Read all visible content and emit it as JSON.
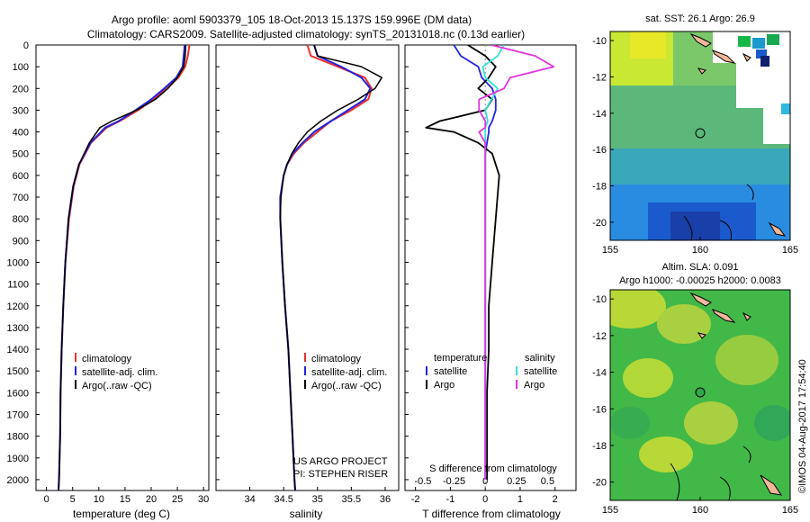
{
  "title_line1": "Argo profile: aoml 5903379_105 18-Oct-2013 15.137S 159.996E (DM data)",
  "title_line2": "Climatology: CARS2009. Satellite-adjusted climatology: synTS_20131018.nc (0.13d earlier)",
  "y_ticks": [
    "0",
    "100",
    "200",
    "300",
    "400",
    "500",
    "600",
    "700",
    "800",
    "900",
    "1000",
    "1100",
    "1200",
    "1300",
    "1400",
    "1500",
    "1600",
    "1700",
    "1800",
    "1900",
    "2000"
  ],
  "y_values": [
    0,
    100,
    200,
    300,
    400,
    500,
    600,
    700,
    800,
    900,
    1000,
    1100,
    1200,
    1300,
    1400,
    1500,
    1600,
    1700,
    1800,
    1900,
    2000
  ],
  "colors": {
    "climatology": "#e8322d",
    "satellite": "#2323e0",
    "argo": "#000000",
    "cyan": "#33e0e0",
    "magenta": "#e033e0"
  },
  "chart_data": [
    {
      "type": "line",
      "xlabel": "temperature (deg C)",
      "ylabel": "depth",
      "xlim": [
        -2,
        31
      ],
      "ylim": [
        2050,
        0
      ],
      "x_ticks": [
        "0",
        "5",
        "10",
        "15",
        "20",
        "25",
        "30"
      ],
      "x_tick_values": [
        0,
        5,
        10,
        15,
        20,
        25,
        30
      ],
      "legend": [
        "climatology",
        "satellite-adj. clim.",
        "Argo(..raw -QC)"
      ],
      "depth": [
        0,
        50,
        100,
        150,
        200,
        250,
        300,
        350,
        380,
        450,
        550,
        650,
        800,
        1000,
        1200,
        1400,
        1600,
        1800,
        2000,
        2050
      ],
      "series": [
        {
          "name": "climatology",
          "values": [
            27.3,
            27.0,
            26.5,
            25.2,
            23.0,
            20.5,
            17.5,
            14.0,
            11.5,
            8.5,
            6.3,
            5.2,
            4.3,
            3.6,
            3.2,
            2.9,
            2.7,
            2.6,
            2.4,
            2.3
          ]
        },
        {
          "name": "satellite-adj. clim.",
          "values": [
            26.4,
            26.2,
            26.0,
            24.8,
            22.5,
            20.0,
            17.0,
            13.8,
            11.2,
            8.4,
            6.2,
            5.1,
            4.2,
            3.6,
            3.2,
            2.9,
            2.7,
            2.6,
            2.4,
            2.3
          ]
        },
        {
          "name": "Argo(..raw -QC)",
          "values": [
            26.6,
            26.5,
            26.2,
            25.0,
            23.2,
            20.8,
            17.2,
            12.5,
            10.2,
            8.2,
            6.2,
            5.1,
            4.2,
            3.6,
            3.2,
            2.9,
            2.7,
            2.6,
            2.4,
            2.3
          ]
        }
      ]
    },
    {
      "type": "line",
      "xlabel": "salinity",
      "xlim": [
        33.5,
        36.2
      ],
      "ylim": [
        2050,
        0
      ],
      "x_ticks": [
        "34",
        "34.5",
        "35",
        "35.5",
        "36"
      ],
      "x_tick_values": [
        34,
        34.5,
        35,
        35.5,
        36
      ],
      "legend": [
        "climatology",
        "satellite-adj. clim.",
        "Argo(..raw -QC)"
      ],
      "annotation": [
        "US ARGO PROJECT",
        "PI: STEPHEN RISER"
      ],
      "depth": [
        0,
        50,
        100,
        150,
        200,
        250,
        300,
        350,
        400,
        450,
        500,
        550,
        600,
        700,
        800,
        1000,
        1200,
        1400,
        1600,
        1800,
        2000,
        2050
      ],
      "series": [
        {
          "name": "climatology",
          "values": [
            34.85,
            34.9,
            35.3,
            35.7,
            35.8,
            35.75,
            35.5,
            35.2,
            35.0,
            34.8,
            34.65,
            34.55,
            34.5,
            34.45,
            34.45,
            34.48,
            34.52,
            34.57,
            34.6,
            34.63,
            34.66,
            34.67
          ]
        },
        {
          "name": "satellite-adj. clim.",
          "values": [
            34.95,
            35.0,
            35.35,
            35.65,
            35.78,
            35.7,
            35.45,
            35.2,
            34.95,
            34.78,
            34.63,
            34.55,
            34.5,
            34.45,
            34.45,
            34.48,
            34.52,
            34.57,
            34.6,
            34.63,
            34.66,
            34.67
          ]
        },
        {
          "name": "Argo(..raw -QC)",
          "values": [
            34.95,
            35.0,
            35.65,
            35.95,
            35.85,
            35.6,
            35.3,
            35.05,
            34.85,
            34.72,
            34.62,
            34.55,
            34.5,
            34.46,
            34.45,
            34.48,
            34.52,
            34.57,
            34.6,
            34.63,
            34.66,
            34.67
          ]
        }
      ]
    },
    {
      "type": "line",
      "xlabel": "T difference from climatology",
      "xlabel2": "S difference from climatology",
      "xlim": [
        -2.3,
        2.6
      ],
      "ylim": [
        2050,
        0
      ],
      "x_ticks": [
        "-2",
        "-1",
        "0",
        "1",
        "2"
      ],
      "x_tick_values": [
        -2,
        -1,
        0,
        1,
        2
      ],
      "s_ticks": [
        "-0.5",
        "-0.25",
        "0",
        "0.25",
        "0.5"
      ],
      "s_tick_values": [
        -0.5,
        -0.25,
        0,
        0.25,
        0.5
      ],
      "legend_temperature": {
        "title": "temperature",
        "items": [
          "satellite",
          "Argo"
        ]
      },
      "legend_salinity": {
        "title": "salinity",
        "items": [
          "satellite",
          "Argo"
        ]
      },
      "depth": [
        0,
        50,
        100,
        150,
        200,
        250,
        300,
        350,
        380,
        400,
        450,
        500,
        600,
        800,
        1000,
        1200,
        1400,
        1600,
        1800,
        2000
      ],
      "series": [
        {
          "name": "T satellite",
          "values": [
            -0.9,
            -0.7,
            -0.2,
            -0.1,
            0.2,
            0.3,
            0.3,
            0.2,
            0.1,
            0.1,
            0.05,
            0.0,
            0.0,
            0.0,
            0.0,
            0.0,
            0.0,
            0.0,
            0.0,
            0.0
          ]
        },
        {
          "name": "T Argo",
          "values": [
            -0.5,
            0.0,
            0.3,
            0.1,
            -0.2,
            0.2,
            0.0,
            -1.3,
            -1.7,
            -0.9,
            -0.2,
            0.2,
            0.4,
            0.3,
            0.2,
            0.1,
            0.1,
            0.05,
            0.05,
            0.05
          ]
        },
        {
          "name": "S satellite",
          "values": [
            0.15,
            0.1,
            -0.02,
            0.0,
            0.1,
            0.05,
            0.0,
            0.02,
            0.0,
            0.0,
            0.0,
            0.0,
            0.0,
            0.0,
            0.0,
            0.0,
            0.0,
            0.0,
            0.0,
            0.0
          ]
        },
        {
          "name": "S Argo",
          "values": [
            0.05,
            0.4,
            0.55,
            0.2,
            0.15,
            -0.05,
            -0.05,
            0.0,
            0.0,
            -0.05,
            0.0,
            0.0,
            0.0,
            0.0,
            0.0,
            0.0,
            0.0,
            0.0,
            0.0,
            0.0
          ]
        }
      ]
    },
    {
      "type": "heatmap",
      "title": "sat. SST: 26.1 Argo: 26.9",
      "x_ticks": [
        "155",
        "160",
        "165"
      ],
      "x_tick_values": [
        155,
        160,
        165
      ],
      "y_ticks": [
        "-10",
        "-12",
        "-14",
        "-16",
        "-18",
        "-20"
      ],
      "y_tick_values": [
        -10,
        -12,
        -14,
        -16,
        -18,
        -20
      ],
      "xlim": [
        155,
        165
      ],
      "ylim": [
        -21,
        -9.5
      ],
      "marker": {
        "lon": 160,
        "lat": -15.1
      }
    },
    {
      "type": "heatmap",
      "title": "Altim. SLA: 0.091",
      "subtitle": "Argo h1000: -0.00025 h2000: 0.0083",
      "x_ticks": [
        "155",
        "160",
        "165"
      ],
      "x_tick_values": [
        155,
        160,
        165
      ],
      "y_ticks": [
        "-10",
        "-12",
        "-14",
        "-16",
        "-18",
        "-20"
      ],
      "y_tick_values": [
        -10,
        -12,
        -14,
        -16,
        -18,
        -20
      ],
      "xlim": [
        155,
        165
      ],
      "ylim": [
        -21,
        -9.5
      ],
      "marker": {
        "lon": 160,
        "lat": -15.1
      }
    }
  ],
  "watermark": "©IMOS 04-Aug-2017 17:54:40"
}
